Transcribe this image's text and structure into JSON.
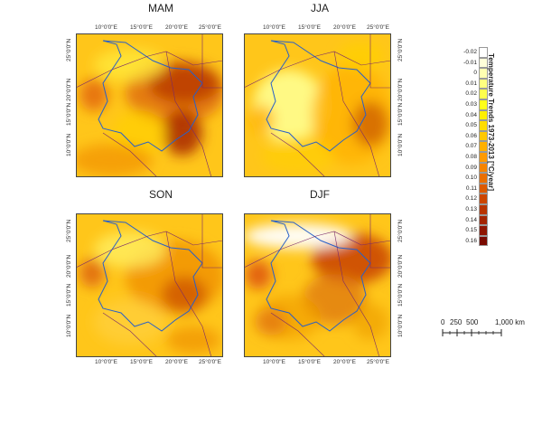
{
  "panels": [
    {
      "title": "MAM",
      "id": "mam"
    },
    {
      "title": "JJA",
      "id": "jja"
    },
    {
      "title": "SON",
      "id": "son"
    },
    {
      "title": "DJF",
      "id": "djf"
    }
  ],
  "lon_ticks": [
    "10°0'0\"E",
    "15°0'0\"E",
    "20°0'0\"E",
    "25°0'0\"E"
  ],
  "lat_ticks": [
    "25°0'0\"N",
    "20°0'0\"N",
    "15°0'0\"N",
    "10°0'0\"N"
  ],
  "legend": {
    "title": "Temperature Trends 1973-2013   [°C/year]",
    "labels": [
      "-0.02",
      "-0.01",
      "0",
      "0.01",
      "0.02",
      "0.03",
      "0.04",
      "0.05",
      "0.06",
      "0.07",
      "0.08",
      "0.09",
      "0.10",
      "0.11",
      "0.12",
      "0.13",
      "0.14",
      "0.15",
      "0.16"
    ],
    "colors": [
      "#ffffff",
      "#ffffd9",
      "#ffffb2",
      "#ffff80",
      "#ffff4d",
      "#ffff1a",
      "#ffef00",
      "#ffdd00",
      "#ffc800",
      "#ffb000",
      "#ff9a00",
      "#f58400",
      "#ea6f00",
      "#dc5a00",
      "#cc4600",
      "#b83400",
      "#a32400",
      "#8f1500",
      "#7a0a00"
    ]
  },
  "scale_bar": {
    "labels": [
      "0",
      "250",
      "500",
      "1,000 km"
    ]
  }
}
